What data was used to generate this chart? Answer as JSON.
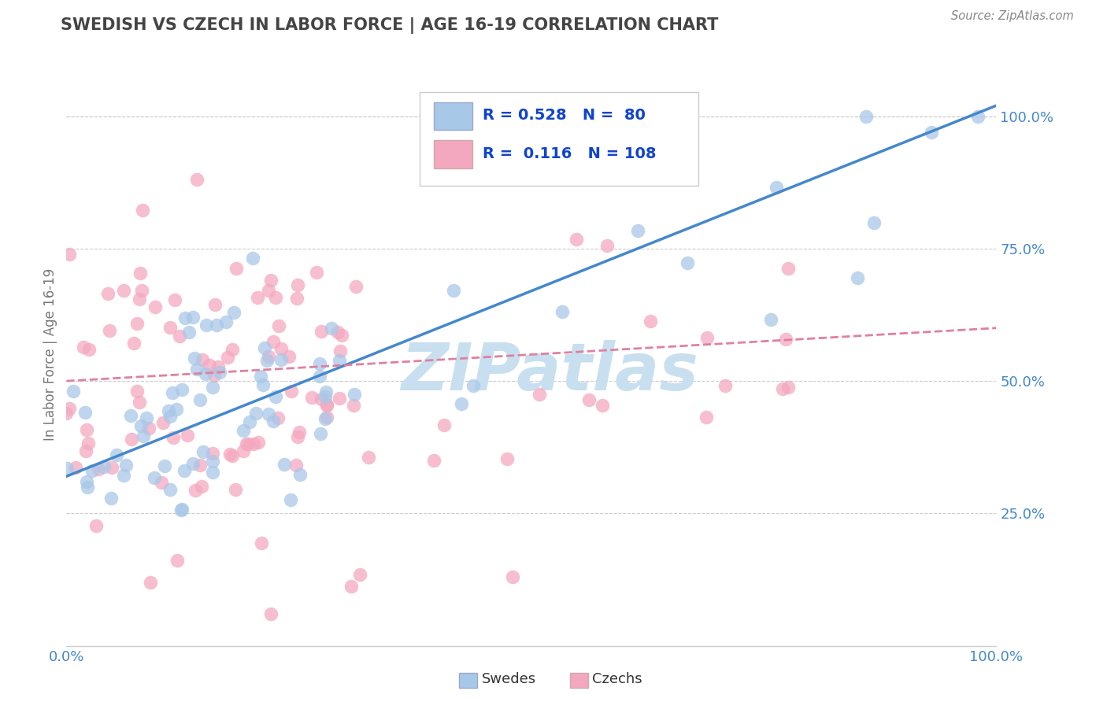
{
  "title": "SWEDISH VS CZECH IN LABOR FORCE | AGE 16-19 CORRELATION CHART",
  "source": "Source: ZipAtlas.com",
  "ylabel": "In Labor Force | Age 16-19",
  "swedes_R": 0.528,
  "swedes_N": 80,
  "czechs_R": 0.116,
  "czechs_N": 108,
  "swede_color": "#a8c8e8",
  "czech_color": "#f4a8c0",
  "swede_line_color": "#4488cc",
  "czech_line_color": "#e080a0",
  "background_color": "#ffffff",
  "watermark_color": "#c8dff0",
  "legend_text_color": "#1144cc",
  "title_color": "#444444",
  "grid_color": "#cccccc",
  "axis_tick_color": "#4488cc",
  "swede_line_intercept": 0.32,
  "swede_line_slope": 0.7,
  "czech_line_intercept": 0.5,
  "czech_line_slope": 0.1
}
